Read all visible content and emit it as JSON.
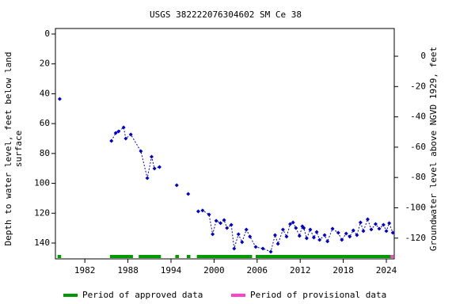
{
  "chart_data": {
    "type": "scatter-line",
    "title": "USGS 382222076304602 SM Ce  38",
    "ylabel": [
      "Depth to water level, feet below land",
      "surface"
    ],
    "y2label": "Groundwater level above NGVD 1929, feet",
    "xlim": [
      1977.9,
      2025.1
    ],
    "xticks": [
      1982,
      1988,
      1994,
      2000,
      2006,
      2012,
      2018,
      2024
    ],
    "ylim": [
      -3.7,
      150.6
    ],
    "y_inverted": true,
    "yticks": [
      0,
      20,
      40,
      60,
      80,
      100,
      120,
      140
    ],
    "y2lim": [
      -133.7,
      18.3
    ],
    "y2ticks": [
      0,
      -20,
      -40,
      -60,
      -80,
      -100,
      -120
    ],
    "series": [
      {
        "name": "Depth to water level",
        "color": "#0000cc",
        "dashed": true,
        "x": [
          1978.5,
          null,
          1985.7,
          1986.3,
          1986.7,
          1987.4,
          1987.7,
          1988.4,
          1989.8,
          1990.7,
          1991.3,
          1991.7,
          1992.4,
          null,
          1994.8,
          null,
          1996.4,
          null,
          1997.8,
          1998.4,
          1999.3,
          1999.8,
          2000.3,
          2000.9,
          2001.4,
          2001.8,
          2002.4,
          2002.8,
          2003.4,
          2003.9,
          2004.5,
          2005.0,
          2005.8,
          2006.8,
          2007.9,
          2008.5,
          2008.9,
          2009.6,
          2010.1,
          2010.6,
          2011.0,
          2011.4,
          2011.9,
          2012.3,
          2012.5,
          2012.9,
          2013.4,
          2013.9,
          2014.3,
          2014.7,
          2015.4,
          2015.8,
          2016.5,
          2017.3,
          2017.8,
          2018.4,
          2018.9,
          2019.4,
          2019.9,
          2020.4,
          2020.8,
          2021.4,
          2021.9,
          2022.5,
          2023.0,
          2023.6,
          2024.0,
          2024.4,
          2024.9
        ],
        "values": [
          43.5,
          null,
          71.6,
          66.3,
          65.2,
          62.6,
          70,
          67.3,
          78.5,
          96.5,
          82.2,
          90.1,
          89.1,
          null,
          101.3,
          null,
          107.1,
          null,
          118.8,
          118.2,
          120.9,
          134.1,
          125.1,
          126.7,
          124.6,
          129.9,
          127.8,
          143.7,
          134.1,
          139.4,
          131,
          135.7,
          142.6,
          143.7,
          145.8,
          134.7,
          140.5,
          131,
          135.7,
          127.3,
          126.2,
          129.9,
          135.2,
          128.8,
          129.9,
          136.8,
          131,
          136.3,
          132.6,
          137.9,
          134.7,
          138.9,
          130.4,
          133.1,
          137.9,
          133.6,
          135.7,
          131.5,
          134.7,
          126.2,
          132,
          124.1,
          130.9,
          127.3,
          130.4,
          127.8,
          132,
          126.7,
          133.1
        ]
      }
    ],
    "periods": [
      {
        "name": "Period of approved data",
        "color": "#009900",
        "ranges": [
          [
            1978.2,
            1978.7
          ],
          [
            1985.5,
            1988.7
          ],
          [
            1989.5,
            1992.6
          ],
          [
            1994.6,
            1995.1
          ],
          [
            1996.2,
            1996.7
          ],
          [
            1997.6,
            2005.3
          ],
          [
            2005.8,
            2024.6
          ]
        ]
      },
      {
        "name": "Period of provisional data",
        "color": "#ff44cc",
        "ranges": [
          [
            2024.6,
            2025.0
          ]
        ]
      }
    ]
  }
}
